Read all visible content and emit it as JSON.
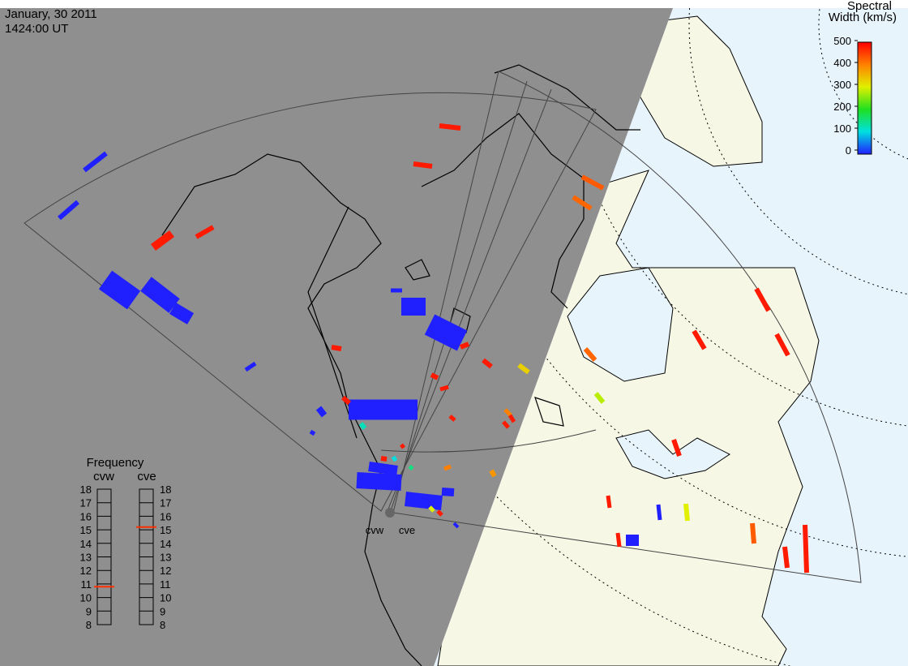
{
  "header": {
    "date": "January, 30 2011",
    "time": "1424:00 UT"
  },
  "colorbar": {
    "title_lines": [
      "Spectral",
      "Width (km/s)"
    ],
    "ticks": [
      0,
      100,
      200,
      300,
      400,
      500
    ]
  },
  "frequency": {
    "title": "Frequency",
    "radars": [
      {
        "name": "cvw",
        "value": 10.8
      },
      {
        "name": "cve",
        "value": 15.2
      }
    ],
    "ticks": [
      8,
      9,
      10,
      11,
      12,
      13,
      14,
      15,
      16,
      17,
      18
    ]
  },
  "echoes": {
    "values": [
      0,
      0,
      480,
      480,
      0,
      0,
      0,
      0,
      480,
      480,
      430,
      420,
      0,
      0,
      0,
      480,
      480,
      330,
      480,
      480,
      0,
      0,
      480,
      480,
      480,
      400,
      480,
      480,
      380,
      400,
      420,
      280,
      480,
      480,
      480,
      480,
      480,
      0,
      300,
      480,
      0,
      430,
      480,
      480,
      0,
      0,
      0,
      0,
      480,
      480,
      100,
      150,
      300,
      480,
      120,
      0,
      0
    ]
  }
}
